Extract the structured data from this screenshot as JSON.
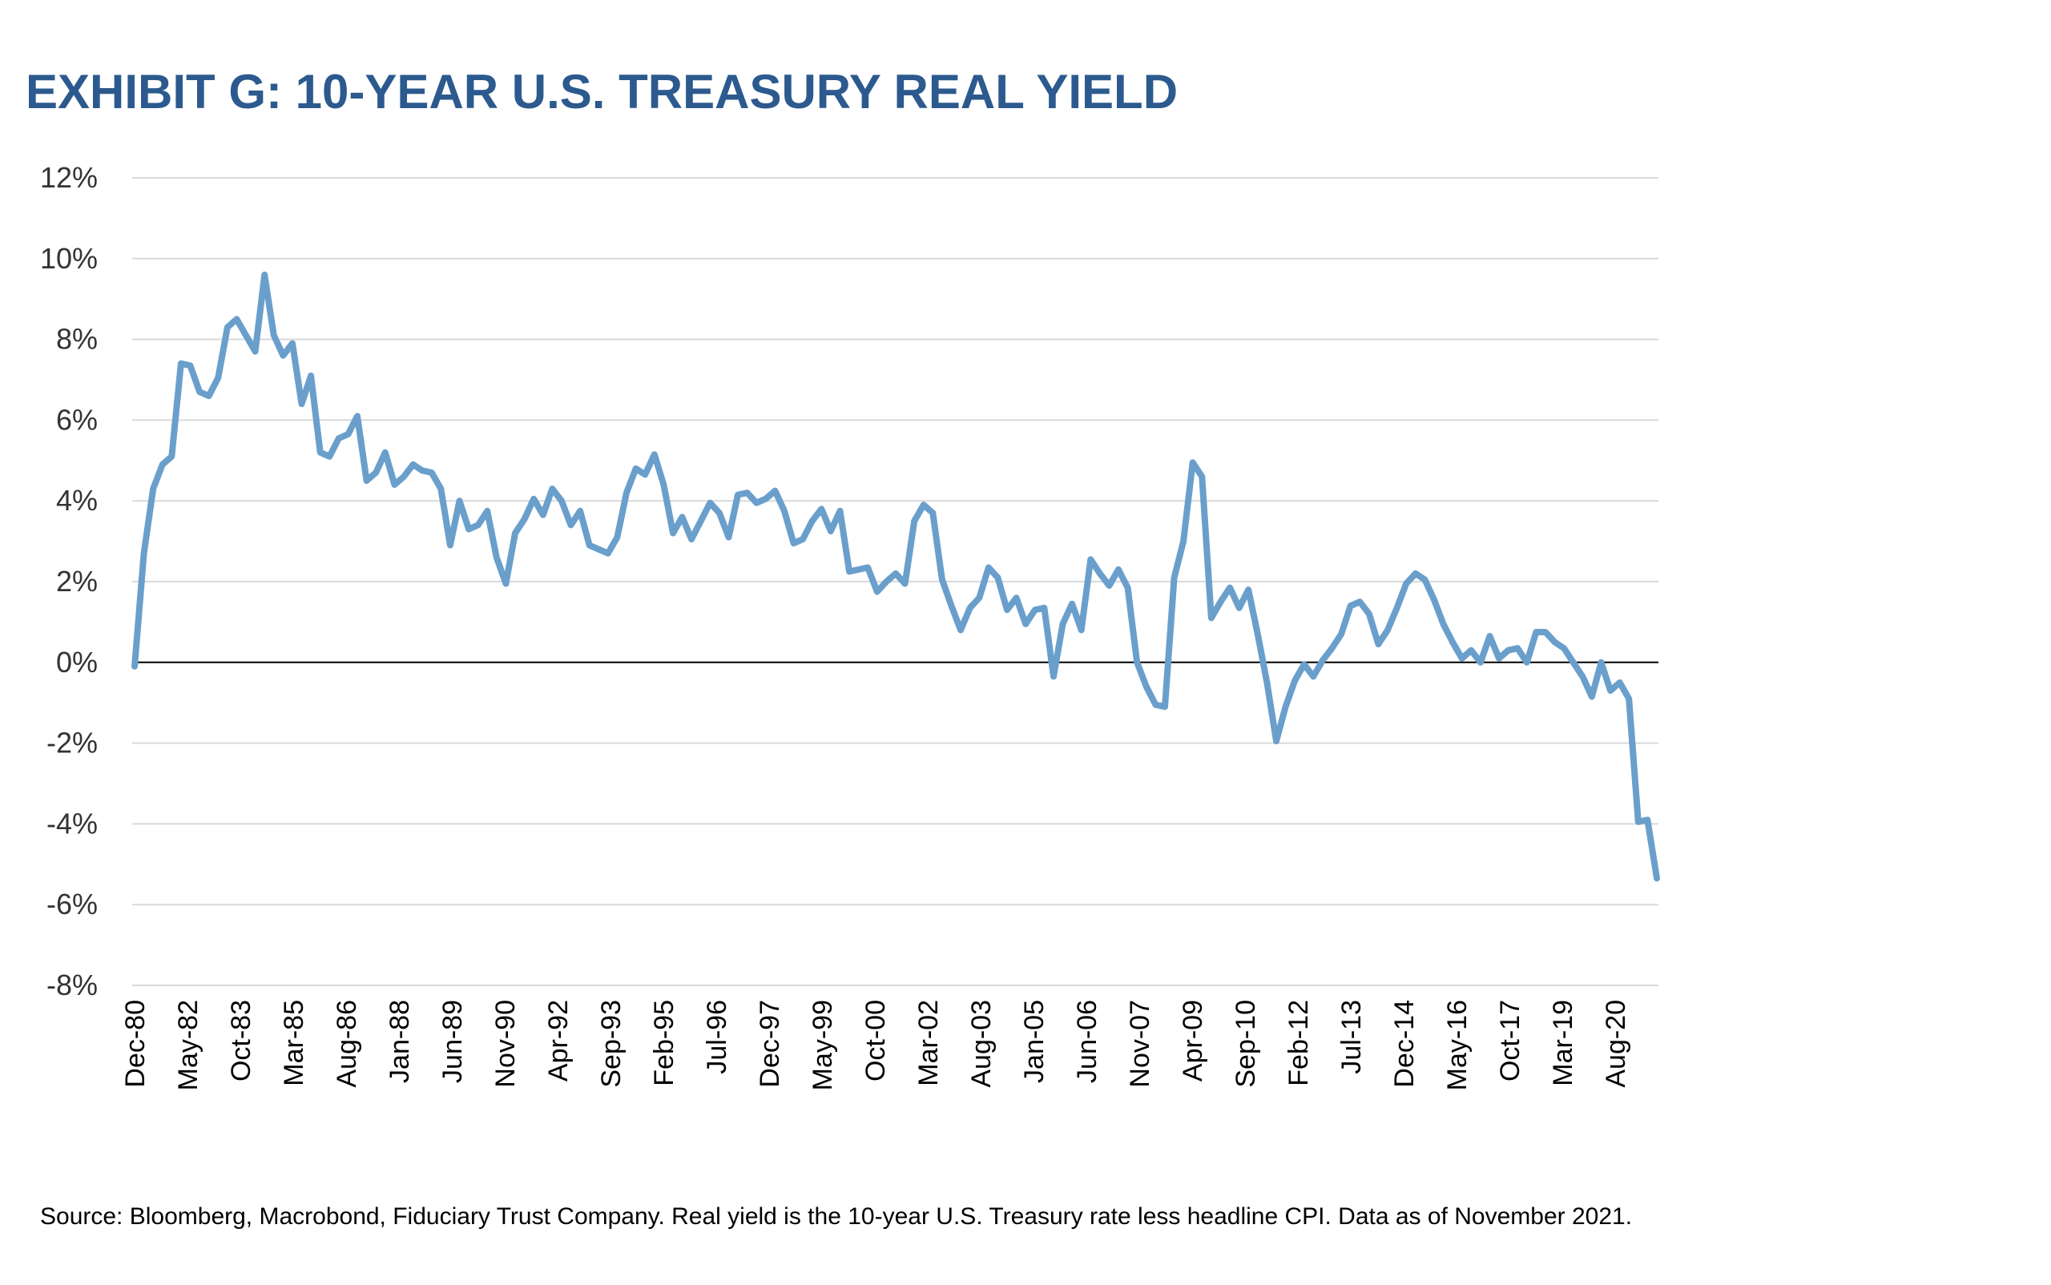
{
  "title": "EXHIBIT G: 10-YEAR U.S. TREASURY REAL YIELD",
  "source_note": "Source: Bloomberg, Macrobond, Fiduciary Trust Company. Real yield is the 10-year U.S. Treasury rate less headline CPI. Data as of November 2021.",
  "colors": {
    "line": "#6a9fcc",
    "title": "#2c5a8e",
    "grid": "#d9d9d9",
    "zero": "#000000"
  },
  "chart_data": {
    "type": "line",
    "title": "EXHIBIT G: 10-YEAR U.S. TREASURY REAL YIELD",
    "xlabel": "",
    "ylabel": "",
    "ylim": [
      -8,
      12
    ],
    "yticks": [
      "-8%",
      "-6%",
      "-4%",
      "-2%",
      "0%",
      "2%",
      "4%",
      "6%",
      "8%",
      "10%",
      "12%"
    ],
    "ytick_values": [
      -8,
      -6,
      -4,
      -2,
      0,
      2,
      4,
      6,
      8,
      10,
      12
    ],
    "xticks": [
      "Dec-80",
      "May-82",
      "Oct-83",
      "Mar-85",
      "Aug-86",
      "Jan-88",
      "Jun-89",
      "Nov-90",
      "Apr-92",
      "Sep-93",
      "Feb-95",
      "Jul-96",
      "Dec-97",
      "May-99",
      "Oct-00",
      "Mar-02",
      "Aug-03",
      "Jan-05",
      "Jun-06",
      "Nov-07",
      "Apr-09",
      "Sep-10",
      "Feb-12",
      "Jul-13",
      "Dec-14",
      "May-16",
      "Oct-17",
      "Mar-19",
      "Aug-20"
    ],
    "grid": true,
    "legend": "none",
    "x_start": "Dec-1980",
    "x_end": "Nov-2021",
    "series": [
      {
        "name": "",
        "values": [
          -0.1,
          2.7,
          4.3,
          4.9,
          5.1,
          7.4,
          7.35,
          6.7,
          6.6,
          7.05,
          8.3,
          8.5,
          8.1,
          7.7,
          9.6,
          8.1,
          7.6,
          7.9,
          6.4,
          7.1,
          5.2,
          5.1,
          5.55,
          5.65,
          6.1,
          4.5,
          4.7,
          5.2,
          4.4,
          4.6,
          4.9,
          4.75,
          4.7,
          4.3,
          2.9,
          4.0,
          3.3,
          3.4,
          3.75,
          2.6,
          1.95,
          3.2,
          3.55,
          4.05,
          3.65,
          4.3,
          4.0,
          3.4,
          3.75,
          2.9,
          2.8,
          2.7,
          3.1,
          4.2,
          4.8,
          4.65,
          5.15,
          4.4,
          3.2,
          3.6,
          3.05,
          3.5,
          3.95,
          3.7,
          3.1,
          4.15,
          4.2,
          3.95,
          4.05,
          4.25,
          3.75,
          2.95,
          3.05,
          3.5,
          3.8,
          3.25,
          3.75,
          2.25,
          2.3,
          2.35,
          1.75,
          2.0,
          2.2,
          1.95,
          3.5,
          3.9,
          3.7,
          2.05,
          1.4,
          0.8,
          1.35,
          1.6,
          2.35,
          2.1,
          1.3,
          1.6,
          0.95,
          1.3,
          1.35,
          -0.35,
          0.95,
          1.45,
          0.8,
          2.55,
          2.2,
          1.9,
          2.3,
          1.85,
          0.0,
          -0.6,
          -1.05,
          -1.1,
          2.1,
          3.0,
          4.95,
          4.6,
          1.1,
          1.5,
          1.85,
          1.35,
          1.8,
          0.7,
          -0.5,
          -1.95,
          -1.1,
          -0.45,
          -0.05,
          -0.35,
          0.05,
          0.35,
          0.7,
          1.4,
          1.5,
          1.2,
          0.45,
          0.8,
          1.35,
          1.95,
          2.2,
          2.05,
          1.55,
          0.95,
          0.5,
          0.1,
          0.3,
          0.0,
          0.65,
          0.1,
          0.3,
          0.35,
          0.0,
          0.75,
          0.75,
          0.5,
          0.35,
          0.0,
          -0.35,
          -0.85,
          0.0,
          -0.7,
          -0.5,
          -0.9,
          -3.95,
          -3.9,
          -5.35
        ]
      }
    ]
  }
}
